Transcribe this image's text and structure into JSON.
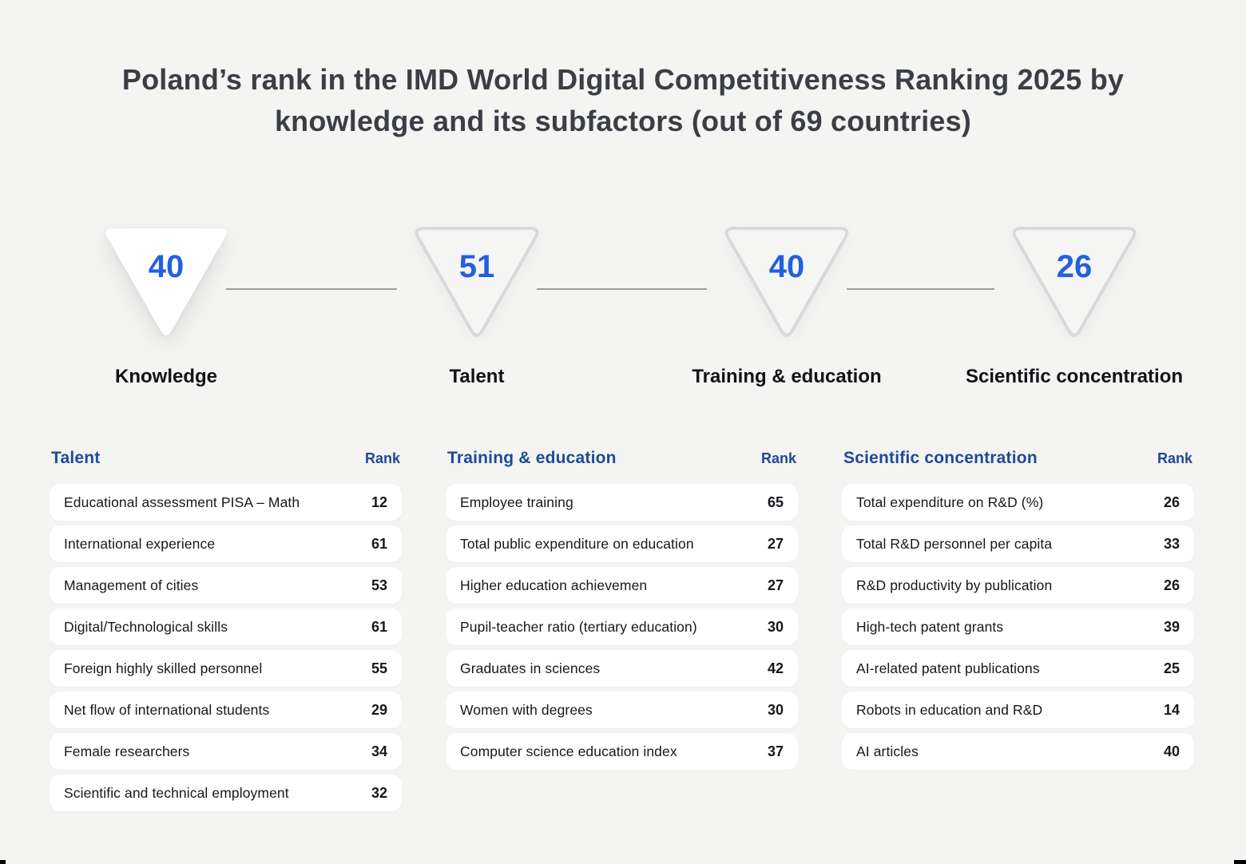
{
  "title": "Poland’s rank in the IMD World Digital Competitiveness Ranking 2025 by knowledge and its subfactors (out of 69 countries)",
  "colors": {
    "background": "#f4f4f3",
    "accent_blue": "#2360e0",
    "header_navy": "#20499a",
    "row_text": "#16181d",
    "title_color": "#3b3e44",
    "triangle_outline": "#d9d9d9",
    "connector_line": "#9e9e9e",
    "row_background": "#ffffff"
  },
  "funnels": [
    {
      "rank": "40",
      "label": "Knowledge",
      "style": "filled"
    },
    {
      "rank": "51",
      "label": "Talent",
      "style": "outlined"
    },
    {
      "rank": "40",
      "label": "Training & education",
      "style": "outlined"
    },
    {
      "rank": "26",
      "label": "Scientific concentration",
      "style": "outlined"
    }
  ],
  "tables": [
    {
      "title": "Talent",
      "rank_header": "Rank",
      "rows": [
        {
          "label": "Educational assessment PISA – Math",
          "rank": "12"
        },
        {
          "label": "International experience",
          "rank": "61"
        },
        {
          "label": "Management of cities",
          "rank": "53"
        },
        {
          "label": "Digital/Technological skills",
          "rank": "61"
        },
        {
          "label": "Foreign highly skilled personnel",
          "rank": "55"
        },
        {
          "label": "Net flow of international students",
          "rank": "29"
        },
        {
          "label": "Female researchers",
          "rank": "34"
        },
        {
          "label": "Scientific and technical employment",
          "rank": "32"
        }
      ]
    },
    {
      "title": "Training & education",
      "rank_header": "Rank",
      "rows": [
        {
          "label": "Employee training",
          "rank": "65"
        },
        {
          "label": "Total public expenditure on education",
          "rank": "27"
        },
        {
          "label": "Higher education achievemen",
          "rank": "27"
        },
        {
          "label": "Pupil-teacher ratio (tertiary education)",
          "rank": "30"
        },
        {
          "label": "Graduates in sciences",
          "rank": "42"
        },
        {
          "label": "Women with degrees",
          "rank": "30"
        },
        {
          "label": "Computer science education index",
          "rank": "37"
        }
      ]
    },
    {
      "title": "Scientific concentration",
      "rank_header": "Rank",
      "rows": [
        {
          "label": "Total expenditure on R&D (%)",
          "rank": "26"
        },
        {
          "label": "Total R&D personnel per capita",
          "rank": "33"
        },
        {
          "label": "R&D productivity by publication",
          "rank": "26"
        },
        {
          "label": "High-tech patent grants",
          "rank": "39"
        },
        {
          "label": "AI-related patent publications",
          "rank": "25"
        },
        {
          "label": "Robots in education and R&D",
          "rank": "14"
        },
        {
          "label": "AI articles",
          "rank": "40"
        }
      ]
    }
  ],
  "chart_data": {
    "type": "table",
    "title": "Poland’s rank in the IMD World Digital Competitiveness Ranking 2025 by knowledge and its subfactors (out of 69 countries)",
    "total_countries": 69,
    "factor": {
      "name": "Knowledge",
      "rank": 40
    },
    "subfactors": [
      {
        "name": "Talent",
        "rank": 51
      },
      {
        "name": "Training & education",
        "rank": 40
      },
      {
        "name": "Scientific concentration",
        "rank": 26
      }
    ],
    "criteria": {
      "Talent": [
        [
          "Educational assessment PISA – Math",
          12
        ],
        [
          "International experience",
          61
        ],
        [
          "Management of cities",
          53
        ],
        [
          "Digital/Technological skills",
          61
        ],
        [
          "Foreign highly skilled personnel",
          55
        ],
        [
          "Net flow of international students",
          29
        ],
        [
          "Female researchers",
          34
        ],
        [
          "Scientific and technical employment",
          32
        ]
      ],
      "Training & education": [
        [
          "Employee training",
          65
        ],
        [
          "Total public expenditure on education",
          27
        ],
        [
          "Higher education achievemen",
          27
        ],
        [
          "Pupil-teacher ratio (tertiary education)",
          30
        ],
        [
          "Graduates in sciences",
          42
        ],
        [
          "Women with degrees",
          30
        ],
        [
          "Computer science education index",
          37
        ]
      ],
      "Scientific concentration": [
        [
          "Total expenditure on R&D (%)",
          26
        ],
        [
          "Total R&D personnel per capita",
          33
        ],
        [
          "R&D productivity by publication",
          26
        ],
        [
          "High-tech patent grants",
          39
        ],
        [
          "AI-related patent publications",
          25
        ],
        [
          "Robots in education and R&D",
          14
        ],
        [
          "AI articles",
          40
        ]
      ]
    },
    "layout": {
      "legend": "none",
      "grid": false
    }
  }
}
